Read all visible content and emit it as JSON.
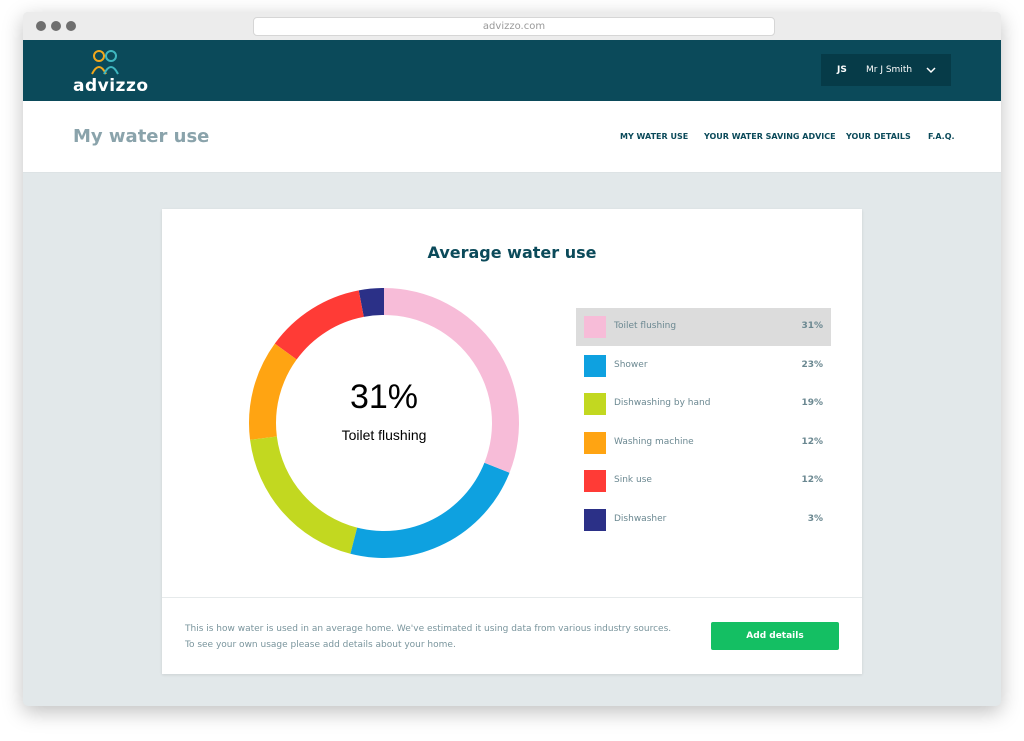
{
  "browser": {
    "url": "advizzo.com"
  },
  "header": {
    "logo": "advizzo",
    "user_initials": "JS",
    "user_name": "Mr J Smith"
  },
  "subheader": {
    "title": "My water use",
    "nav": [
      "MY WATER USE",
      "YOUR WATER SAVING ADVICE",
      "YOUR DETAILS",
      "F.A.Q."
    ]
  },
  "chart_data": {
    "type": "pie",
    "title": "Average water use",
    "categories": [
      "Toilet flushing",
      "Shower",
      "Dishwashing by hand",
      "Washing machine",
      "Sink use",
      "Dishwasher"
    ],
    "values": [
      31,
      23,
      19,
      12,
      12,
      3
    ],
    "value_labels": [
      "31%",
      "23%",
      "19%",
      "12%",
      "12%",
      "3%"
    ],
    "colors": [
      "#f7bcd8",
      "#0ea1e0",
      "#c2d820",
      "#ffa412",
      "#ff3b36",
      "#2b3087"
    ]
  },
  "footer": {
    "text": "This is how water is used in an average home. We've estimated it using data from various industry sources. To see your own usage please add details about your home.",
    "button": "Add details"
  }
}
